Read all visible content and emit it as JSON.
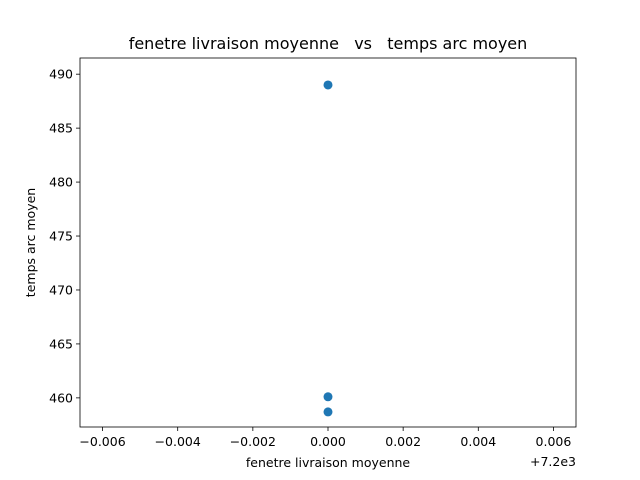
{
  "chart_data": {
    "type": "scatter",
    "title": "fenetre livraison moyenne   vs   temps arc moyen",
    "xlabel": "fenetre livraison moyenne",
    "ylabel": "temps arc moyen",
    "x_offset_label": "+7.2e3",
    "x_offset": 7200,
    "xlim": [
      -0.0066,
      0.0066
    ],
    "ylim": [
      457.3,
      491.5
    ],
    "x_ticks": [
      -0.006,
      -0.004,
      -0.002,
      0.0,
      0.002,
      0.004,
      0.006
    ],
    "x_tick_labels": [
      "−0.006",
      "−0.004",
      "−0.002",
      "0.000",
      "0.002",
      "0.004",
      "0.006"
    ],
    "y_ticks": [
      460,
      465,
      470,
      475,
      480,
      485,
      490
    ],
    "y_tick_labels": [
      "460",
      "465",
      "470",
      "475",
      "480",
      "485",
      "490"
    ],
    "grid": false,
    "legend": "none",
    "marker_color": "#1f77b4",
    "points": [
      {
        "x": 0.0,
        "y": 489.0
      },
      {
        "x": 0.0,
        "y": 460.1
      },
      {
        "x": 0.0,
        "y": 458.7
      }
    ]
  }
}
